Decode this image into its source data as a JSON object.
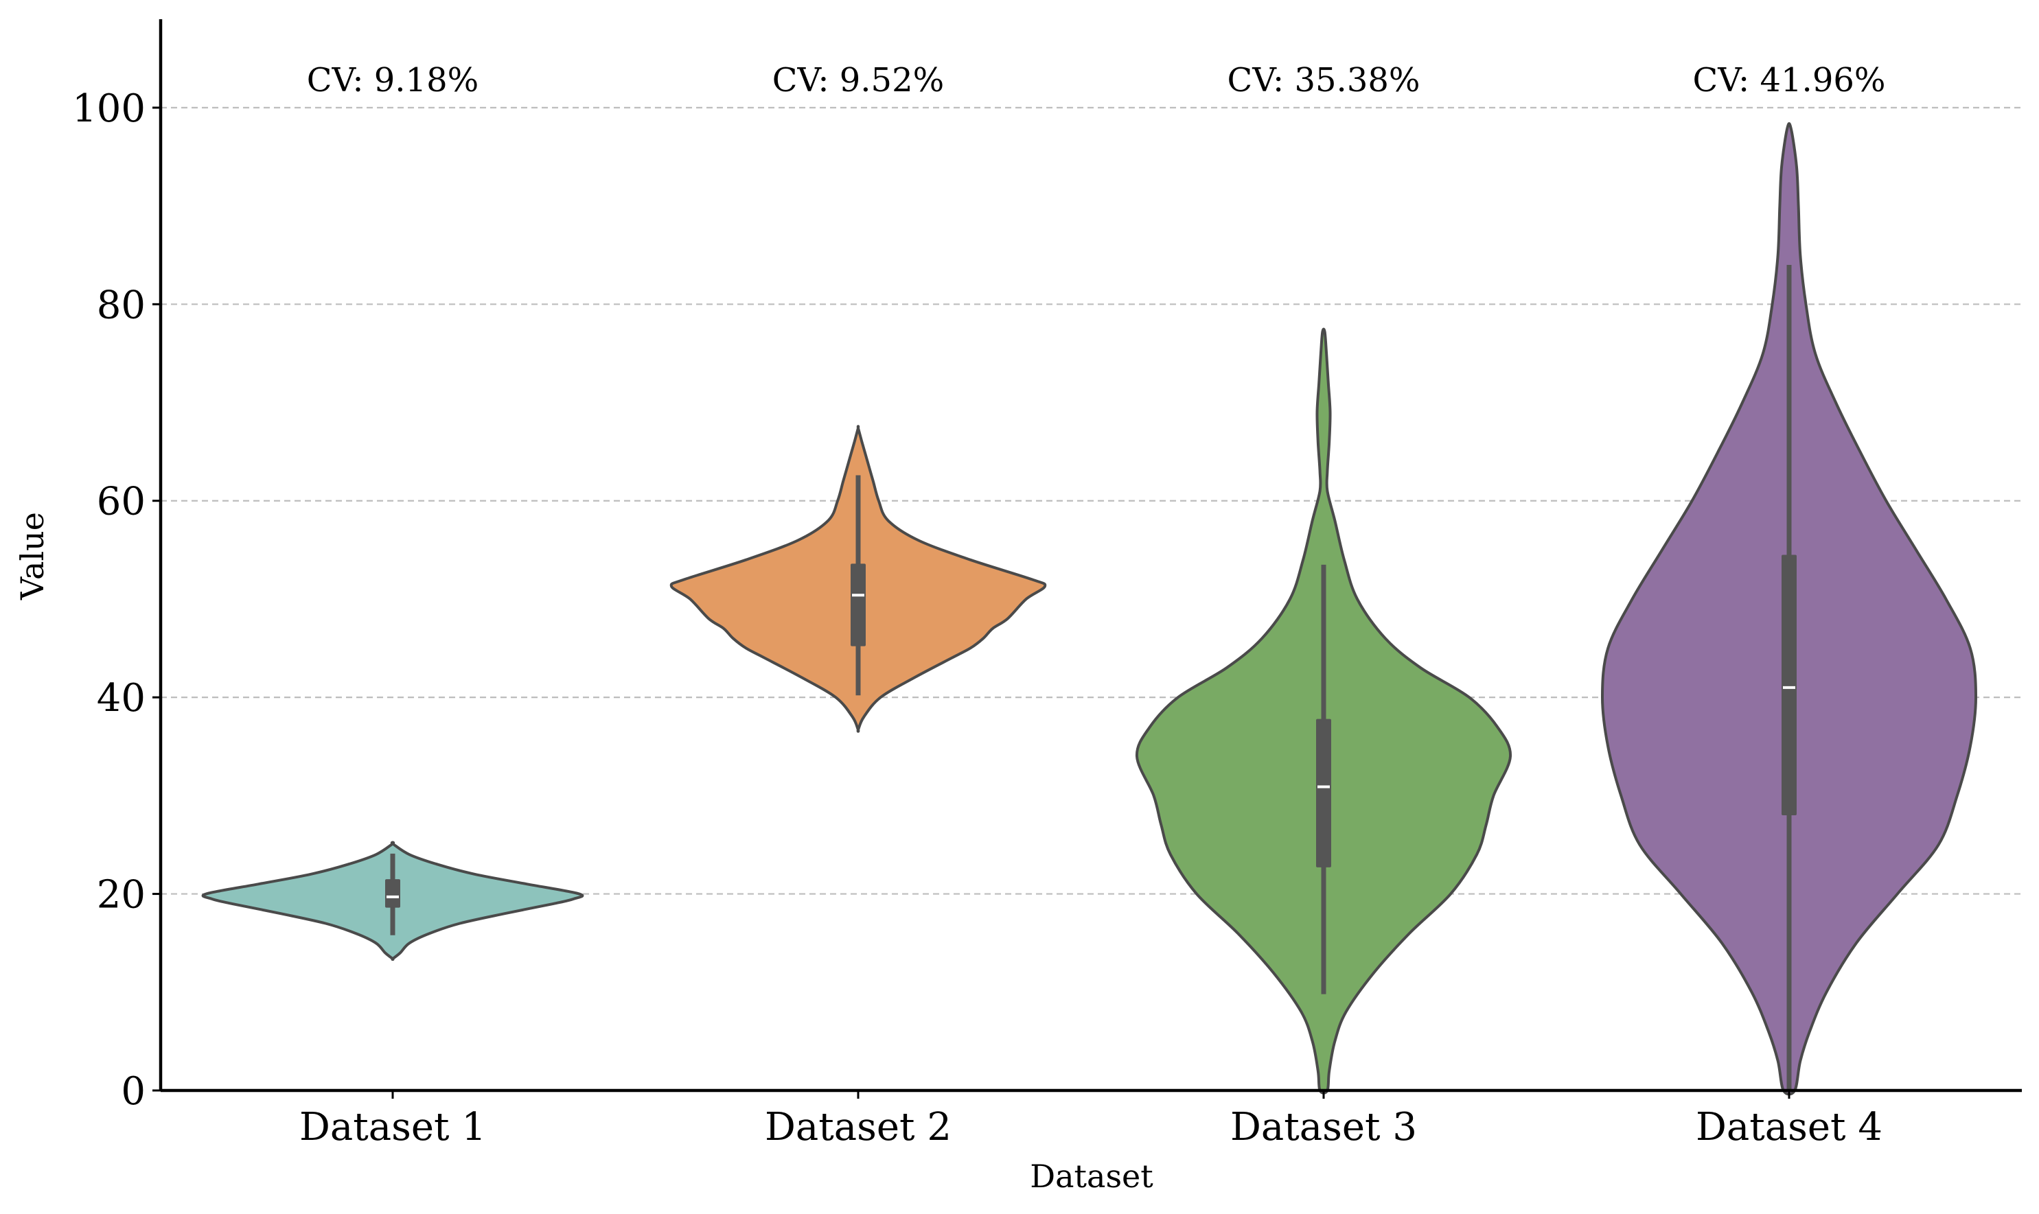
{
  "chart_data": {
    "type": "violin",
    "title": "",
    "xlabel": "Dataset",
    "ylabel": "Value",
    "ylim": [
      0,
      109
    ],
    "yticks": [
      0,
      20,
      40,
      60,
      80,
      100
    ],
    "grid": {
      "y": true,
      "style": "dashed"
    },
    "categories": [
      "Dataset 1",
      "Dataset 2",
      "Dataset 3",
      "Dataset 4"
    ],
    "series": [
      {
        "category": "Dataset 1",
        "color": "#8dc3bc",
        "annotation": "CV: 9.18%",
        "range": [
          13.4,
          25.1
        ],
        "whiskers": [
          15.8,
          24.1
        ],
        "q1": 18.6,
        "median": 19.7,
        "q3": 21.5,
        "density_profile": [
          [
            13.4,
            0
          ],
          [
            14.0,
            0.04
          ],
          [
            15.0,
            0.09
          ],
          [
            16.0,
            0.2
          ],
          [
            17.0,
            0.36
          ],
          [
            18.0,
            0.6
          ],
          [
            19.0,
            0.86
          ],
          [
            19.5,
            0.97
          ],
          [
            20.0,
            1.0
          ],
          [
            21.0,
            0.72
          ],
          [
            22.0,
            0.44
          ],
          [
            23.0,
            0.24
          ],
          [
            24.0,
            0.09
          ],
          [
            25.1,
            0
          ]
        ]
      },
      {
        "category": "Dataset 2",
        "color": "#e39b63",
        "annotation": "CV: 9.52%",
        "range": [
          36.7,
          67.4
        ],
        "whiskers": [
          40.2,
          62.6
        ],
        "q1": 45.2,
        "median": 50.4,
        "q3": 53.6,
        "density_profile": [
          [
            36.7,
            0
          ],
          [
            38.0,
            0.03
          ],
          [
            40.0,
            0.12
          ],
          [
            42.0,
            0.3
          ],
          [
            44.0,
            0.5
          ],
          [
            45.0,
            0.6
          ],
          [
            46.0,
            0.67
          ],
          [
            47.0,
            0.72
          ],
          [
            48.0,
            0.8
          ],
          [
            50.0,
            0.9
          ],
          [
            51.3,
            1.0
          ],
          [
            52.0,
            0.93
          ],
          [
            54.0,
            0.6
          ],
          [
            56.0,
            0.32
          ],
          [
            58.0,
            0.16
          ],
          [
            60.0,
            0.11
          ],
          [
            62.0,
            0.08
          ],
          [
            64.0,
            0.05
          ],
          [
            66.0,
            0.02
          ],
          [
            67.4,
            0
          ]
        ]
      },
      {
        "category": "Dataset 3",
        "color": "#79aa64",
        "annotation": "CV: 35.38%",
        "range": [
          0,
          77.2
        ],
        "whiskers": [
          9.8,
          53.5
        ],
        "q1": 22.7,
        "median": 30.9,
        "q3": 37.8,
        "density_profile": [
          [
            0,
            0.02
          ],
          [
            2.0,
            0.03
          ],
          [
            5.0,
            0.06
          ],
          [
            8.0,
            0.12
          ],
          [
            12.0,
            0.27
          ],
          [
            16.0,
            0.46
          ],
          [
            20.0,
            0.68
          ],
          [
            24.0,
            0.82
          ],
          [
            27.0,
            0.87
          ],
          [
            30.0,
            0.91
          ],
          [
            34.0,
            1.0
          ],
          [
            37.0,
            0.93
          ],
          [
            40.0,
            0.78
          ],
          [
            43.0,
            0.52
          ],
          [
            46.0,
            0.33
          ],
          [
            50.0,
            0.18
          ],
          [
            54.0,
            0.11
          ],
          [
            58.0,
            0.06
          ],
          [
            61.0,
            0.02
          ],
          [
            63.0,
            0.02
          ],
          [
            66.0,
            0.03
          ],
          [
            69.0,
            0.035
          ],
          [
            72.0,
            0.025
          ],
          [
            75.0,
            0.015
          ],
          [
            77.2,
            0.006
          ]
        ]
      },
      {
        "category": "Dataset 4",
        "color": "#9071a1",
        "annotation": "CV: 41.96%",
        "range": [
          0,
          97.9
        ],
        "whiskers": [
          0,
          84.0
        ],
        "q1": 28.0,
        "median": 41.0,
        "q3": 54.5,
        "density_profile": [
          [
            0,
            0.03
          ],
          [
            3.0,
            0.06
          ],
          [
            6.0,
            0.11
          ],
          [
            10.0,
            0.2
          ],
          [
            15.0,
            0.36
          ],
          [
            20.0,
            0.58
          ],
          [
            25.0,
            0.8
          ],
          [
            30.0,
            0.9
          ],
          [
            35.0,
            0.97
          ],
          [
            40.0,
            1.0
          ],
          [
            45.0,
            0.97
          ],
          [
            50.0,
            0.84
          ],
          [
            55.0,
            0.68
          ],
          [
            60.0,
            0.52
          ],
          [
            65.0,
            0.38
          ],
          [
            70.0,
            0.25
          ],
          [
            75.0,
            0.14
          ],
          [
            80.0,
            0.09
          ],
          [
            85.0,
            0.06
          ],
          [
            90.0,
            0.05
          ],
          [
            94.0,
            0.04
          ],
          [
            97.9,
            0.01
          ]
        ]
      }
    ]
  }
}
